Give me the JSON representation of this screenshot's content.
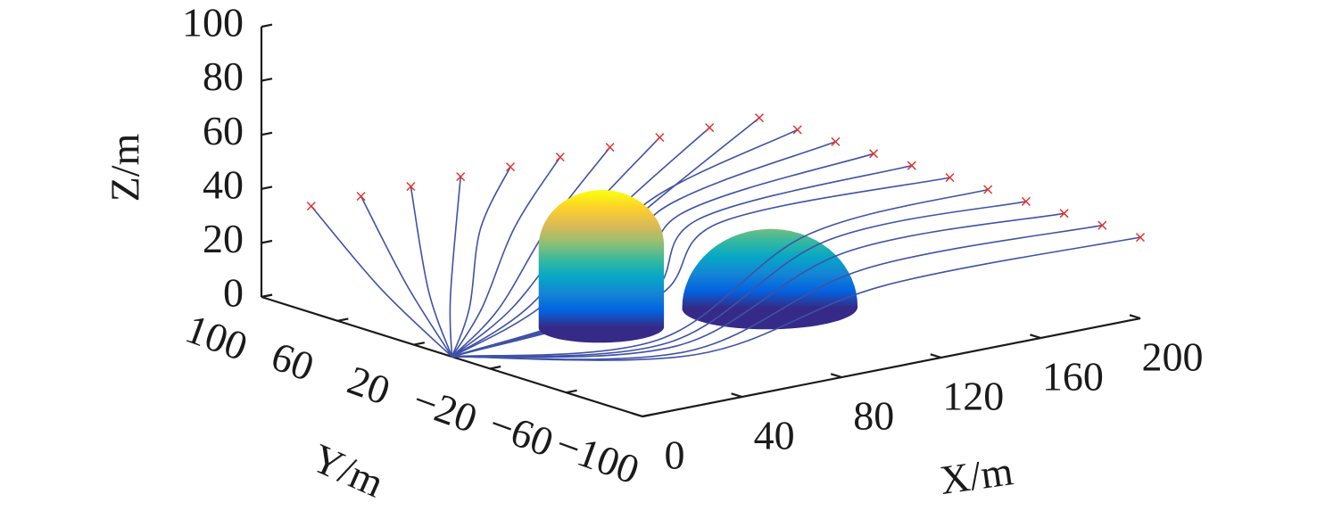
{
  "chart_data": {
    "type": "trajectory3d",
    "xlabel": "X/m",
    "ylabel": "Y/m",
    "zlabel": "Z/m",
    "xlim": [
      0,
      200
    ],
    "xticks": [
      0,
      40,
      80,
      120,
      160,
      200
    ],
    "ylim": [
      -100,
      100
    ],
    "yticks": [
      100,
      60,
      20,
      {
        "value": -20,
        "label": "−20"
      },
      {
        "value": -60,
        "label": "−60"
      },
      {
        "value": -100,
        "label": "−100"
      }
    ],
    "zlim": [
      0,
      100
    ],
    "zticks": [
      0,
      20,
      40,
      60,
      80,
      100
    ],
    "grid": false,
    "line_color": "#3f52a6",
    "marker_color": "#e0342f",
    "colormap": [
      "#352a87",
      "#0363e1",
      "#1485d4",
      "#06a7c6",
      "#38b99e",
      "#92bf73",
      "#d9ba56",
      "#fcce2e",
      "#f9fb0e"
    ],
    "obstacles": [
      {
        "shape": "cylinder",
        "center": [
          60,
          0
        ],
        "radius": 20,
        "height": 30
      },
      {
        "shape": "hemisphere",
        "center": [
          117,
          -14
        ],
        "radius": 28
      }
    ],
    "series": [
      {
        "x": [
          0,
          10,
          20
        ],
        "y": [
          0,
          50,
          100
        ],
        "z": [
          0,
          12,
          30
        ]
      },
      {
        "x": [
          0,
          20,
          40
        ],
        "y": [
          0,
          50,
          100
        ],
        "z": [
          0,
          12,
          30
        ]
      },
      {
        "x": [
          0,
          25,
          60
        ],
        "y": [
          0,
          45,
          100
        ],
        "z": [
          0,
          10,
          30
        ]
      },
      {
        "x": [
          0,
          30,
          80
        ],
        "y": [
          0,
          40,
          100
        ],
        "z": [
          0,
          8,
          30
        ]
      },
      {
        "x": [
          0,
          30,
          65,
          100
        ],
        "y": [
          0,
          30,
          70,
          100
        ],
        "z": [
          0,
          6,
          20,
          30
        ]
      },
      {
        "x": [
          0,
          35,
          75,
          120
        ],
        "y": [
          0,
          30,
          65,
          100
        ],
        "z": [
          0,
          5,
          20,
          30
        ]
      },
      {
        "x": [
          0,
          40,
          85,
          140
        ],
        "y": [
          0,
          28,
          60,
          100
        ],
        "z": [
          0,
          4,
          20,
          30
        ]
      },
      {
        "x": [
          0,
          45,
          95,
          160
        ],
        "y": [
          0,
          27,
          57,
          100
        ],
        "z": [
          0,
          4,
          20,
          30
        ]
      },
      {
        "x": [
          0,
          50,
          105,
          180
        ],
        "y": [
          0,
          26,
          55,
          100
        ],
        "z": [
          0,
          3,
          20,
          30
        ]
      },
      {
        "x": [
          0,
          55,
          115,
          200
        ],
        "y": [
          0,
          25,
          52,
          100
        ],
        "z": [
          0,
          3,
          20,
          30
        ]
      },
      {
        "x": [
          0,
          80,
          110,
          200
        ],
        "y": [
          0,
          18,
          45,
          80
        ],
        "z": [
          0,
          3,
          25,
          30
        ]
      },
      {
        "x": [
          0,
          82,
          112,
          200
        ],
        "y": [
          0,
          16,
          38,
          60
        ],
        "z": [
          0,
          3,
          25,
          30
        ]
      },
      {
        "x": [
          0,
          84,
          114,
          200
        ],
        "y": [
          0,
          14,
          30,
          40
        ],
        "z": [
          0,
          3,
          25,
          30
        ]
      },
      {
        "x": [
          0,
          86,
          116,
          200
        ],
        "y": [
          0,
          12,
          22,
          20
        ],
        "z": [
          0,
          3,
          25,
          30
        ]
      },
      {
        "x": [
          0,
          88,
          118,
          200
        ],
        "y": [
          0,
          10,
          14,
          0
        ],
        "z": [
          0,
          3,
          25,
          30
        ]
      },
      {
        "x": [
          0,
          60,
          120,
          200
        ],
        "y": [
          0,
          -30,
          -30,
          -20
        ],
        "z": [
          0,
          2,
          30,
          30
        ]
      },
      {
        "x": [
          0,
          60,
          120,
          200
        ],
        "y": [
          0,
          -35,
          -40,
          -40
        ],
        "z": [
          0,
          2,
          30,
          30
        ]
      },
      {
        "x": [
          0,
          60,
          120,
          200
        ],
        "y": [
          0,
          -40,
          -50,
          -60
        ],
        "z": [
          0,
          2,
          28,
          30
        ]
      },
      {
        "x": [
          0,
          60,
          120,
          200
        ],
        "y": [
          0,
          -45,
          -60,
          -80
        ],
        "z": [
          0,
          1,
          24,
          30
        ]
      },
      {
        "x": [
          0,
          60,
          120,
          200
        ],
        "y": [
          0,
          -50,
          -70,
          -100
        ],
        "z": [
          0,
          1,
          20,
          30
        ]
      }
    ]
  }
}
